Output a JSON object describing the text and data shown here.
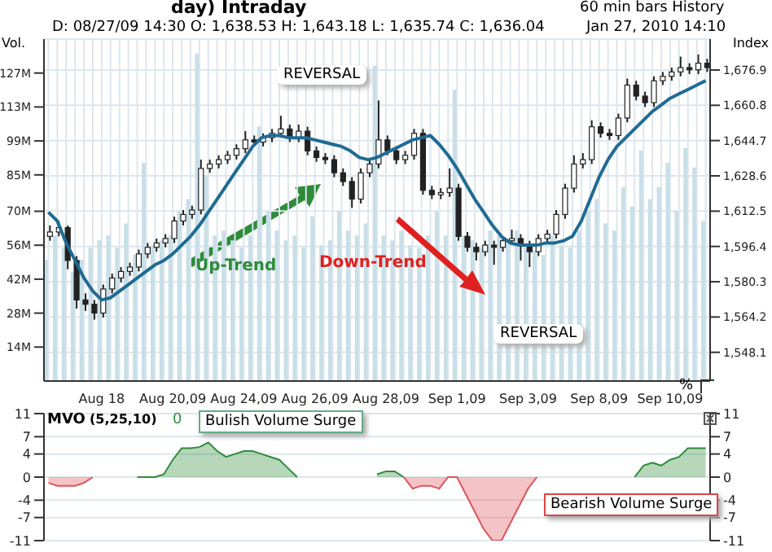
{
  "chart_data": [
    {
      "type": "candlestick",
      "title": "day) Intraday",
      "ylabel": "Index",
      "y2label": "Vol.",
      "categories": [
        null,
        null,
        null,
        null,
        null,
        null,
        "Aug 18",
        null,
        null,
        null,
        null,
        null,
        null,
        null,
        "Aug 20,09",
        null,
        null,
        null,
        null,
        null,
        null,
        null,
        "Aug 24,09",
        null,
        null,
        null,
        null,
        null,
        null,
        null,
        "Aug 26,09",
        null,
        null,
        null,
        null,
        null,
        null,
        null,
        "Aug 28,09",
        null,
        null,
        null,
        null,
        null,
        null,
        null,
        "Sep 1,09",
        null,
        null,
        null,
        null,
        null,
        null,
        null,
        "Sep 3,09",
        null,
        null,
        null,
        null,
        null,
        null,
        null,
        "Sep 8,09",
        null,
        null,
        null,
        null,
        null,
        null,
        null,
        "Sep 10,09",
        null,
        null,
        null,
        null
      ],
      "ohlc": [
        [
          1601,
          1606,
          1599,
          1603
        ],
        [
          1603,
          1608,
          1601,
          1605
        ],
        [
          1605,
          1606,
          1586,
          1590
        ],
        [
          1590,
          1592,
          1568,
          1572
        ],
        [
          1572,
          1575,
          1567,
          1570
        ],
        [
          1570,
          1572,
          1563,
          1566
        ],
        [
          1566,
          1579,
          1564,
          1577
        ],
        [
          1577,
          1584,
          1575,
          1582
        ],
        [
          1582,
          1587,
          1580,
          1585
        ],
        [
          1585,
          1589,
          1583,
          1587
        ],
        [
          1587,
          1595,
          1585,
          1593
        ],
        [
          1593,
          1598,
          1591,
          1596
        ],
        [
          1596,
          1600,
          1594,
          1598
        ],
        [
          1598,
          1602,
          1596,
          1600
        ],
        [
          1600,
          1610,
          1598,
          1608
        ],
        [
          1608,
          1613,
          1606,
          1611
        ],
        [
          1611,
          1615,
          1609,
          1613
        ],
        [
          1613,
          1636,
          1611,
          1632
        ],
        [
          1632,
          1636,
          1630,
          1634
        ],
        [
          1634,
          1638,
          1632,
          1636
        ],
        [
          1636,
          1640,
          1634,
          1638
        ],
        [
          1638,
          1643,
          1636,
          1641
        ],
        [
          1641,
          1649,
          1639,
          1645
        ],
        [
          1645,
          1647,
          1642,
          1644
        ],
        [
          1644,
          1648,
          1642,
          1646
        ],
        [
          1646,
          1650,
          1644,
          1648
        ],
        [
          1648,
          1656,
          1646,
          1650
        ],
        [
          1650,
          1652,
          1644,
          1646
        ],
        [
          1646,
          1652,
          1644,
          1649
        ],
        [
          1649,
          1651,
          1638,
          1640
        ],
        [
          1640,
          1642,
          1635,
          1637
        ],
        [
          1637,
          1639,
          1634,
          1636
        ],
        [
          1636,
          1638,
          1628,
          1630
        ],
        [
          1630,
          1632,
          1624,
          1626
        ],
        [
          1626,
          1628,
          1614,
          1618
        ],
        [
          1618,
          1632,
          1616,
          1630
        ],
        [
          1630,
          1636,
          1628,
          1634
        ],
        [
          1634,
          1663,
          1632,
          1645
        ],
        [
          1645,
          1647,
          1638,
          1640
        ],
        [
          1640,
          1642,
          1634,
          1636
        ],
        [
          1636,
          1640,
          1634,
          1638
        ],
        [
          1638,
          1650,
          1636,
          1648
        ],
        [
          1648,
          1650,
          1620,
          1622
        ],
        [
          1622,
          1624,
          1618,
          1620
        ],
        [
          1620,
          1623,
          1618,
          1621
        ],
        [
          1621,
          1632,
          1619,
          1623
        ],
        [
          1623,
          1625,
          1599,
          1601
        ],
        [
          1601,
          1603,
          1594,
          1596
        ],
        [
          1596,
          1598,
          1590,
          1594
        ],
        [
          1594,
          1599,
          1592,
          1597
        ],
        [
          1597,
          1599,
          1588,
          1596
        ],
        [
          1596,
          1601,
          1594,
          1599
        ],
        [
          1599,
          1604,
          1597,
          1600
        ],
        [
          1600,
          1602,
          1590,
          1597
        ],
        [
          1597,
          1599,
          1587,
          1594
        ],
        [
          1594,
          1602,
          1592,
          1600
        ],
        [
          1600,
          1604,
          1598,
          1602
        ],
        [
          1602,
          1613,
          1600,
          1611
        ],
        [
          1611,
          1625,
          1609,
          1623
        ],
        [
          1623,
          1638,
          1621,
          1634
        ],
        [
          1634,
          1639,
          1632,
          1636
        ],
        [
          1636,
          1654,
          1634,
          1651
        ],
        [
          1651,
          1653,
          1646,
          1648
        ],
        [
          1648,
          1650,
          1645,
          1647
        ],
        [
          1647,
          1657,
          1645,
          1655
        ],
        [
          1655,
          1673,
          1653,
          1670
        ],
        [
          1670,
          1672,
          1663,
          1665
        ],
        [
          1665,
          1667,
          1660,
          1662
        ],
        [
          1662,
          1674,
          1660,
          1672
        ],
        [
          1672,
          1676,
          1670,
          1674
        ],
        [
          1674,
          1678,
          1672,
          1676
        ],
        [
          1676,
          1683,
          1674,
          1678
        ],
        [
          1678,
          1680,
          1675,
          1677
        ],
        [
          1677,
          1684,
          1675,
          1680
        ],
        [
          1680,
          1682,
          1676,
          1678
        ]
      ],
      "color": "#222222",
      "series": [
        {
          "type": "bar",
          "axis": "y2",
          "color": "#c9dfe8",
          "values": [
            50,
            60,
            55,
            45,
            50,
            55,
            58,
            60,
            55,
            65,
            52,
            90,
            56,
            58,
            60,
            70,
            75,
            135,
            85,
            60,
            62,
            58,
            55,
            60,
            105,
            70,
            62,
            58,
            60,
            55,
            68,
            56,
            58,
            70,
            62,
            60,
            65,
            130,
            60,
            58,
            62,
            56,
            55,
            60,
            70,
            60,
            120,
            60,
            58,
            55,
            62,
            60,
            58,
            62,
            56,
            54,
            52,
            60,
            56,
            55,
            62,
            70,
            75,
            65,
            62,
            80,
            72,
            95,
            75,
            80,
            90,
            70,
            96,
            88,
            66
          ]
        },
        {
          "type": "line",
          "color": "#1f6b94",
          "values": [
            1612,
            1608,
            1598,
            1590,
            1582,
            1576,
            1572,
            1573,
            1576,
            1579,
            1582,
            1585,
            1588,
            1590,
            1593,
            1597,
            1601,
            1606,
            1612,
            1618,
            1624,
            1630,
            1636,
            1642,
            1646,
            1647,
            1647,
            1646,
            1646,
            1646,
            1645,
            1644,
            1643,
            1642,
            1640,
            1637,
            1636,
            1637,
            1639,
            1641,
            1643,
            1645,
            1646,
            1647,
            1643,
            1638,
            1632,
            1625,
            1618,
            1612,
            1606,
            1601,
            1598,
            1597,
            1597,
            1597,
            1598,
            1598,
            1599,
            1601,
            1608,
            1618,
            1628,
            1636,
            1642,
            1646,
            1650,
            1654,
            1658,
            1661,
            1664,
            1666,
            1668,
            1670,
            1672
          ]
        }
      ],
      "ylim": [
        1535,
        1691
      ],
      "yticks": [
        {
          "value": 1548.1,
          "label": "1,548.1"
        },
        {
          "value": 1564.2,
          "label": "1,564.2"
        },
        {
          "value": 1580.3,
          "label": "1,580.3"
        },
        {
          "value": 1596.4,
          "label": "1,596.4"
        },
        {
          "value": 1612.5,
          "label": "1,612.5"
        },
        {
          "value": 1628.6,
          "label": "1,628.6"
        },
        {
          "value": 1644.7,
          "label": "1,644.7"
        },
        {
          "value": 1660.8,
          "label": "1,660.8"
        },
        {
          "value": 1676.9,
          "label": "1,676.9"
        }
      ],
      "y2lim": [
        0,
        141
      ],
      "y2ticks": [
        {
          "value": 14,
          "label": "14M"
        },
        {
          "value": 28,
          "label": "28M"
        },
        {
          "value": 42,
          "label": "42M"
        },
        {
          "value": 56,
          "label": "56M"
        },
        {
          "value": 70,
          "label": "70M"
        },
        {
          "value": 85,
          "label": "85M"
        },
        {
          "value": 99,
          "label": "99M"
        },
        {
          "value": 113,
          "label": "113M"
        },
        {
          "value": 127,
          "label": "127M"
        }
      ],
      "grid": true,
      "annotations": [
        "D: 08/27/09 14:30  O: 1,638.53  H: 1,643.18  L: 1,635.74  C: 1,636.04",
        "60 min bars  History",
        "Jan 27, 2010 14:10",
        "REVERSAL",
        "Up-Trend",
        "Down-Trend",
        "REVERSAL",
        "%"
      ]
    },
    {
      "type": "area",
      "categories": [
        null,
        null,
        null,
        null,
        null,
        null,
        null,
        null,
        null,
        null,
        null,
        null,
        null,
        null,
        null,
        null,
        null,
        null,
        null,
        null,
        null,
        null,
        null,
        null,
        null,
        null,
        null,
        null,
        null,
        null,
        null,
        null,
        null,
        null,
        null,
        null,
        null,
        null,
        null,
        null,
        null,
        null,
        null,
        null,
        null,
        null,
        null,
        null,
        null,
        null,
        null,
        null,
        null,
        null,
        null,
        null,
        null,
        null,
        null,
        null,
        null,
        null,
        null,
        null,
        null,
        null,
        null,
        null,
        null,
        null,
        null,
        null,
        null,
        null,
        null
      ],
      "series": [
        {
          "color": "#2e8b3a",
          "values": [
            null,
            null,
            null,
            null,
            null,
            null,
            null,
            null,
            null,
            null,
            0,
            0,
            0,
            0.5,
            3,
            5,
            5,
            5.2,
            6,
            4.5,
            3.5,
            4,
            4.5,
            4.5,
            4,
            3.5,
            3,
            1.5,
            0,
            null,
            null,
            null,
            null,
            null,
            null,
            null,
            null,
            0.5,
            1,
            1,
            0,
            null,
            null,
            null,
            null,
            null,
            null,
            null,
            null,
            null,
            null,
            null,
            null,
            null,
            null,
            null,
            null,
            null,
            null,
            null,
            null,
            null,
            null,
            null,
            null,
            null,
            0,
            2,
            2.5,
            2,
            3,
            3.5,
            5,
            5,
            5
          ]
        },
        {
          "color": "#e0525a",
          "values": [
            -1,
            -1.5,
            -1.5,
            -1.5,
            -1,
            0,
            null,
            null,
            null,
            null,
            null,
            null,
            null,
            null,
            null,
            null,
            null,
            null,
            null,
            null,
            null,
            null,
            null,
            null,
            null,
            null,
            null,
            null,
            null,
            null,
            null,
            null,
            null,
            null,
            null,
            null,
            null,
            null,
            null,
            null,
            0,
            -2,
            -1.5,
            -1.5,
            -2,
            0,
            0,
            -3,
            -6,
            -9,
            -11,
            -11,
            -8,
            -5,
            -2,
            0,
            null,
            null,
            null,
            null,
            null,
            null,
            null,
            null,
            null,
            null,
            null,
            null,
            null,
            null,
            null,
            null,
            null,
            null,
            null
          ]
        }
      ],
      "ylim": [
        -11,
        11
      ],
      "yticks": [
        -11,
        -7,
        -4,
        0,
        4,
        7,
        11
      ],
      "y2lim": [
        -11,
        11
      ],
      "y2ticks": [
        -11,
        -7,
        -4,
        0,
        4,
        7,
        11
      ],
      "grid": true,
      "tick_labels": "y",
      "annotations": [
        "MVO",
        "(5,25,10)",
        "0",
        "Bulish Volume Surge",
        "Bearish Volume Surge"
      ]
    }
  ]
}
